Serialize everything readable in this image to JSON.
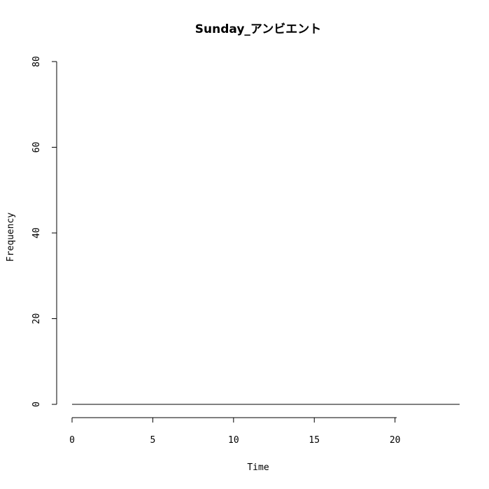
{
  "chart_data": {
    "type": "line",
    "title": "Sunday_アンビエント",
    "xlabel": "Time",
    "ylabel": "Frequency",
    "xlim": [
      0,
      24
    ],
    "ylim": [
      0,
      80
    ],
    "x_ticks": [
      0,
      5,
      10,
      15,
      20
    ],
    "y_ticks": [
      0,
      20,
      40,
      60,
      80
    ],
    "grid": false,
    "series": [
      {
        "x": [
          0,
          1,
          2,
          3,
          4,
          5,
          6,
          7,
          8,
          9,
          10,
          11,
          12,
          13,
          14,
          15,
          16,
          17,
          18,
          19,
          20,
          21,
          22,
          23,
          24
        ],
        "values": [
          0,
          0,
          0,
          0,
          0,
          0,
          0,
          0,
          0,
          0,
          0,
          0,
          0,
          0,
          0,
          0,
          0,
          0,
          0,
          0,
          0,
          0,
          0,
          0,
          0
        ]
      }
    ]
  }
}
